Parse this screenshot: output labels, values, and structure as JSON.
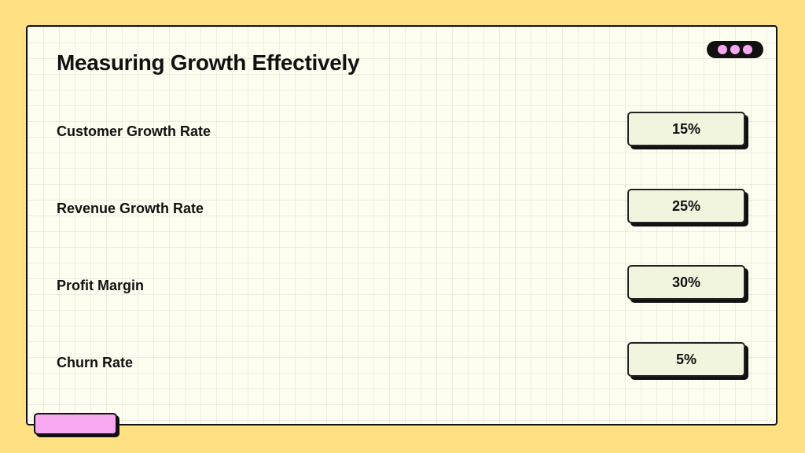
{
  "title": "Measuring Growth Effectively",
  "metrics": [
    {
      "label": "Customer Growth Rate",
      "value": "15%"
    },
    {
      "label": "Revenue Growth Rate",
      "value": "25%"
    },
    {
      "label": "Profit Margin",
      "value": "30%"
    },
    {
      "label": "Churn Rate",
      "value": "5%"
    }
  ],
  "colors": {
    "background": "#FFE082",
    "card": "#FDFDF0",
    "accent_pink": "#F7A8F0",
    "value_box": "#F1F5DD",
    "outline": "#111111"
  },
  "decorations": {
    "window_controls_icon": "three-dots-icon",
    "bottom_tab": "pink-tab"
  }
}
